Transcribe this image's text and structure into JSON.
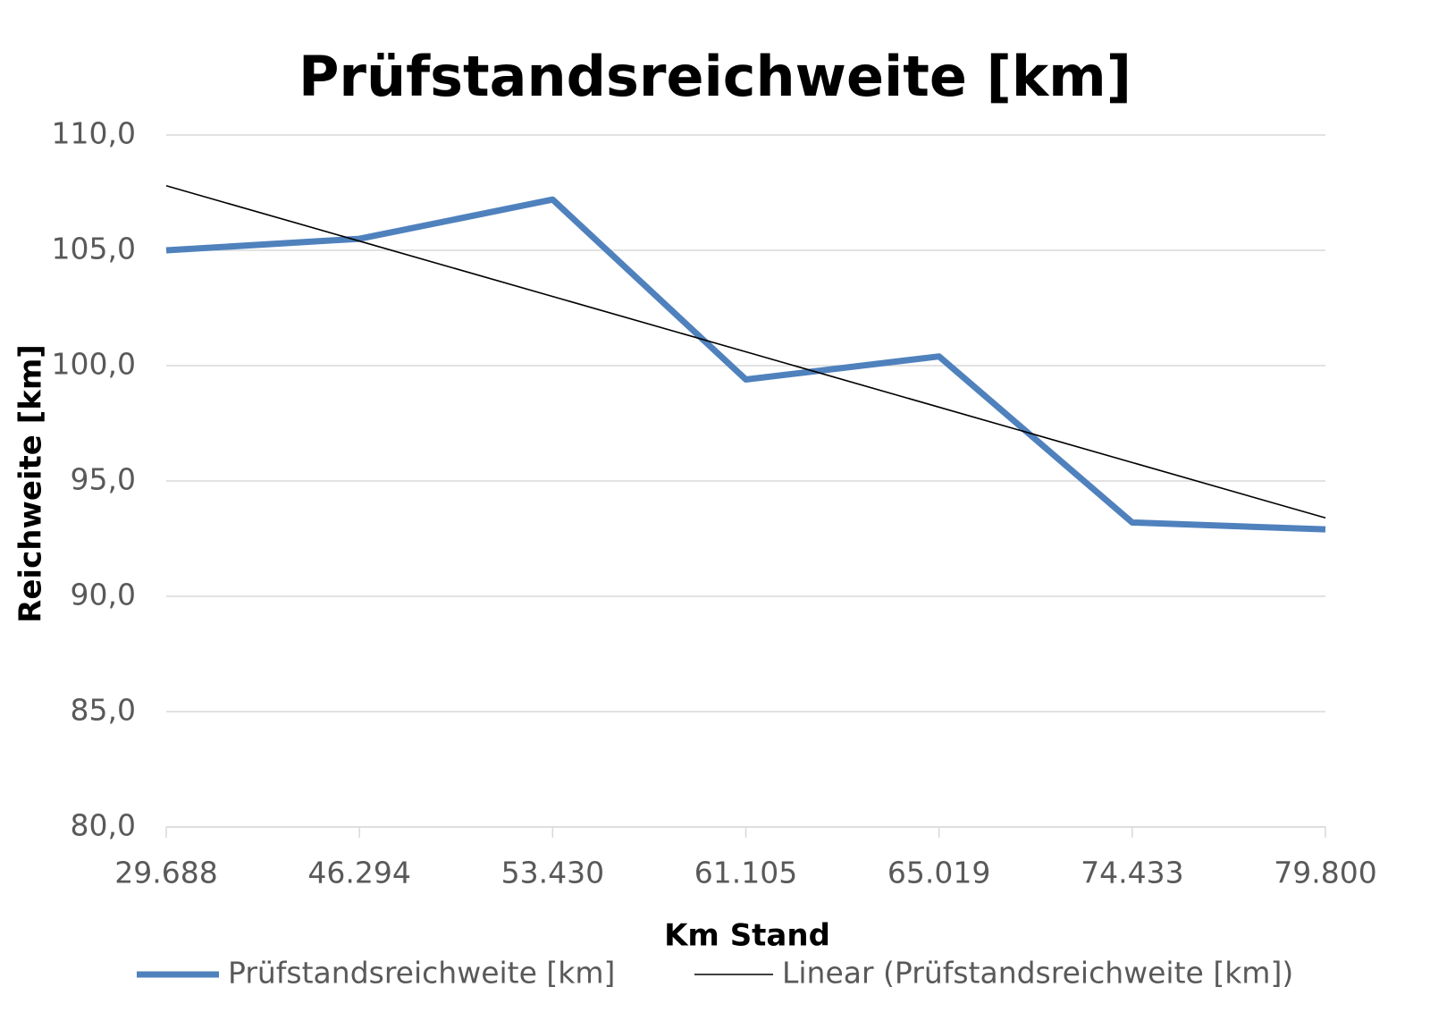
{
  "chart_data": {
    "type": "line",
    "title": "Prüfstandsreichweite [km]",
    "x_label": "Km Stand",
    "y_label": "Reichweite [km]",
    "categories": [
      "29.688",
      "46.294",
      "53.430",
      "61.105",
      "65.019",
      "74.433",
      "79.800"
    ],
    "series": [
      {
        "name": "Prüfstandsreichweite [km]",
        "color": "#4f81bd",
        "values": [
          105.0,
          105.5,
          107.2,
          99.4,
          100.4,
          93.2,
          92.9
        ]
      },
      {
        "name": "Linear (Prüfstandsreichweite [km])",
        "color": "#000000",
        "values": [
          107.8,
          105.4,
          103.0,
          100.6,
          98.2,
          95.8,
          93.4
        ]
      }
    ],
    "ylim": [
      80,
      110
    ],
    "yticks": [
      {
        "value": 80,
        "label": "80,0"
      },
      {
        "value": 85,
        "label": "85,0"
      },
      {
        "value": 90,
        "label": "90,0"
      },
      {
        "value": 95,
        "label": "95,0"
      },
      {
        "value": 100,
        "label": "100,0"
      },
      {
        "value": 105,
        "label": "105,0"
      },
      {
        "value": 110,
        "label": "110,0"
      }
    ],
    "grid": true,
    "legend": "bottom"
  }
}
